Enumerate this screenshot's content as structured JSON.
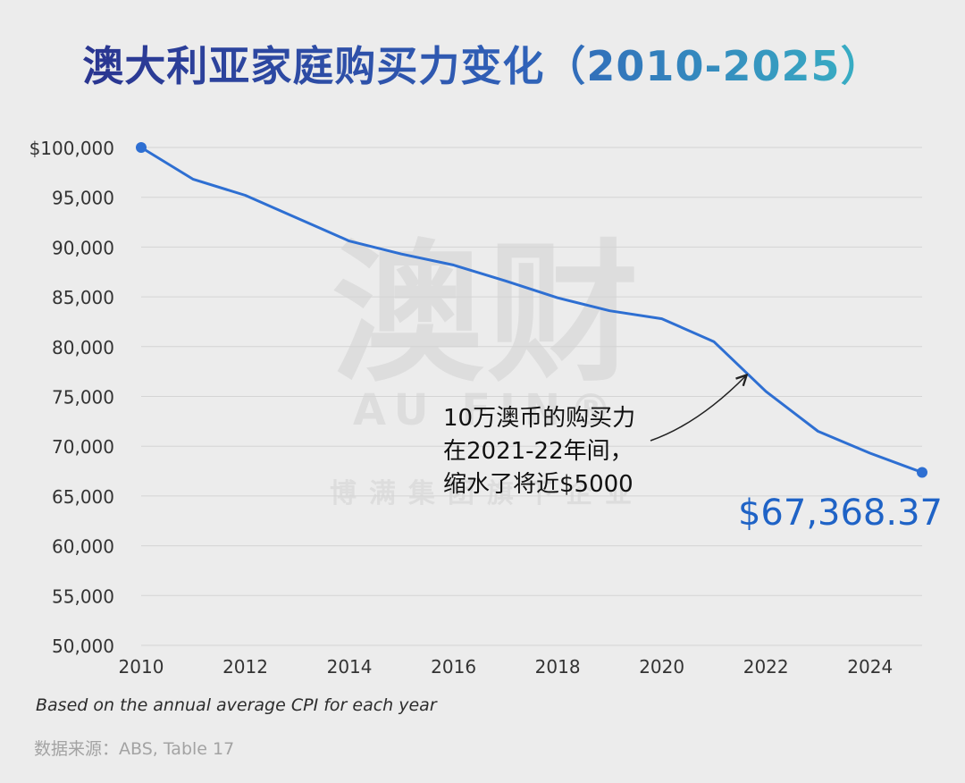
{
  "title": "澳大利亚家庭购买力变化（2010-2025）",
  "footnote": "Based on the annual average CPI for each year",
  "source": "数据来源：ABS, Table 17",
  "colors": {
    "line": "#2e6fd2",
    "final_label": "#1f63c6",
    "grid": "#d4d4d4",
    "text": "#333333"
  },
  "chart_data": {
    "type": "line",
    "title": "澳大利亚家庭购买力变化（2010-2025）",
    "xlabel": "",
    "ylabel": "",
    "x": [
      2010,
      2011,
      2012,
      2013,
      2014,
      2015,
      2016,
      2017,
      2018,
      2019,
      2020,
      2021,
      2022,
      2023,
      2024,
      2025
    ],
    "values": [
      100000,
      96800,
      95200,
      92900,
      90600,
      89300,
      88200,
      86600,
      84900,
      83600,
      82800,
      80500,
      75500,
      71500,
      69300,
      67368.37
    ],
    "xlim": [
      2010,
      2025
    ],
    "ylim": [
      50000,
      100000
    ],
    "xticks": [
      "2010",
      "2012",
      "2014",
      "2016",
      "2018",
      "2020",
      "2022",
      "2024"
    ],
    "yticks": [
      "$100,000",
      "95,000",
      "90,000",
      "85,000",
      "80,000",
      "75,000",
      "70,000",
      "65,000",
      "60,000",
      "55,000",
      "50,000"
    ],
    "grid": true,
    "legend": "none",
    "final_value_label": "$67,368.37",
    "annotation": {
      "lines": [
        "10万澳币的购买力",
        "在2021-22年间，",
        "缩水了将近$5000"
      ],
      "points_to": {
        "x": 2021.7,
        "y": 77600
      }
    }
  }
}
